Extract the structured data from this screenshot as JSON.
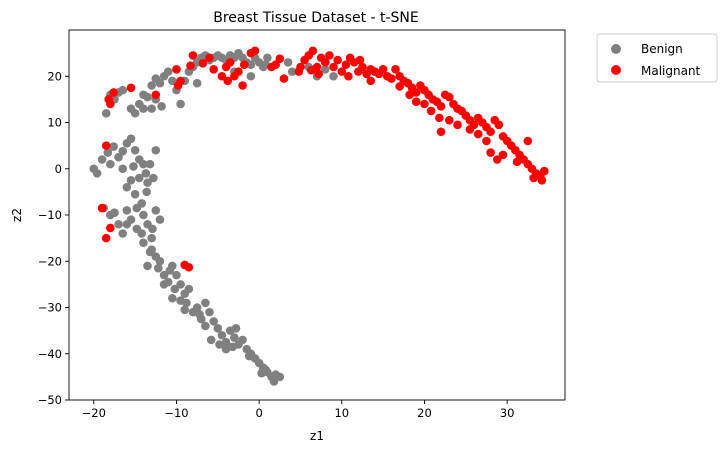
{
  "chart_data": {
    "type": "scatter",
    "title": "Breast Tissue Dataset - t-SNE",
    "xlabel": "z1",
    "ylabel": "z2",
    "xlim": [
      -23,
      37
    ],
    "ylim": [
      -50,
      30
    ],
    "xticks": [
      -20,
      -10,
      0,
      10,
      20,
      30
    ],
    "yticks": [
      -50,
      -40,
      -30,
      -20,
      -10,
      0,
      10,
      20
    ],
    "grid": false,
    "legend_position": "outside-upper-right",
    "series": [
      {
        "name": "Benign",
        "color": "#808080",
        "points": [
          [
            -20,
            0
          ],
          [
            -19.6,
            -1
          ],
          [
            -19,
            2
          ],
          [
            -18.3,
            3.5
          ],
          [
            -18,
            1
          ],
          [
            -17.6,
            4.8
          ],
          [
            -17,
            2.5
          ],
          [
            -16.5,
            3.8
          ],
          [
            -16,
            5.5
          ],
          [
            -15.5,
            6.5
          ],
          [
            -15,
            4
          ],
          [
            -14.5,
            2
          ],
          [
            -15.2,
            0.5
          ],
          [
            -14,
            1
          ],
          [
            -14.5,
            -2
          ],
          [
            -16,
            -4
          ],
          [
            -15,
            -5.5
          ],
          [
            -13.6,
            -5
          ],
          [
            -14.2,
            -7.5
          ],
          [
            -13.5,
            -3
          ],
          [
            -12.8,
            -2
          ],
          [
            -13.2,
            1
          ],
          [
            -12.5,
            4
          ],
          [
            -18.8,
            -8.5
          ],
          [
            -18,
            -10
          ],
          [
            -17,
            -12
          ],
          [
            -16.5,
            -14
          ],
          [
            -16,
            -9
          ],
          [
            -15.5,
            -11
          ],
          [
            -14.8,
            -13
          ],
          [
            -14,
            -10
          ],
          [
            -13.5,
            -12
          ],
          [
            -12.5,
            -9
          ],
          [
            -12,
            -11
          ],
          [
            -13,
            -15
          ],
          [
            -14,
            -16
          ],
          [
            -13,
            -17.5
          ],
          [
            -12.5,
            -19
          ],
          [
            -13.5,
            -21
          ],
          [
            -12.2,
            -21.5
          ],
          [
            -11.5,
            -23
          ],
          [
            -10.8,
            -22
          ],
          [
            -11,
            -24.5
          ],
          [
            -10.2,
            -26
          ],
          [
            -10,
            -23
          ],
          [
            -9.5,
            -25
          ],
          [
            -9,
            -27
          ],
          [
            -9.5,
            -28.5
          ],
          [
            -8.5,
            -26
          ],
          [
            -8.8,
            -29
          ],
          [
            -7.5,
            -30
          ],
          [
            -8,
            -31
          ],
          [
            -7,
            -32.5
          ],
          [
            -6,
            -31
          ],
          [
            -6.5,
            -29
          ],
          [
            -5.5,
            -33
          ],
          [
            -5,
            -34.5
          ],
          [
            -4.5,
            -36
          ],
          [
            -4,
            -37.5
          ],
          [
            -3.5,
            -35
          ],
          [
            -3,
            -36.5
          ],
          [
            -2.5,
            -38
          ],
          [
            -2,
            -37
          ],
          [
            -1.5,
            -39
          ],
          [
            -1,
            -40
          ],
          [
            -0.5,
            -41
          ],
          [
            0,
            -42
          ],
          [
            0.5,
            -43
          ],
          [
            1,
            -44
          ],
          [
            1.5,
            -45
          ],
          [
            2,
            -44.5
          ],
          [
            2.5,
            -45
          ],
          [
            1.8,
            -46
          ],
          [
            0.8,
            -43.5
          ],
          [
            -4,
            -39
          ],
          [
            -4.8,
            -38
          ],
          [
            -3.2,
            -38.5
          ],
          [
            -2.8,
            -34.5
          ],
          [
            -6.5,
            -34
          ],
          [
            -7.2,
            -31.5
          ],
          [
            -9,
            -30.5
          ],
          [
            -10.5,
            -28
          ],
          [
            -11.5,
            -25
          ],
          [
            -12,
            -20
          ],
          [
            -13.2,
            -18
          ],
          [
            -14.2,
            -14
          ],
          [
            -16,
            -12
          ],
          [
            -17.5,
            -9.5
          ],
          [
            -15.5,
            -2.5
          ],
          [
            -16.5,
            0
          ],
          [
            -13.7,
            -1
          ],
          [
            -14.8,
            -8.5
          ],
          [
            -12.9,
            -13
          ],
          [
            -10.5,
            -21
          ],
          [
            -5.8,
            -37
          ],
          [
            -1.2,
            -40.5
          ],
          [
            0.3,
            -44.2
          ],
          [
            -18.5,
            12
          ],
          [
            -17.5,
            15
          ],
          [
            -18,
            16
          ],
          [
            -17,
            16.5
          ],
          [
            -16.5,
            17
          ],
          [
            -15.5,
            13
          ],
          [
            -15,
            12
          ],
          [
            -14.5,
            14
          ],
          [
            -14,
            16
          ],
          [
            -13.5,
            15.5
          ],
          [
            -13,
            13
          ],
          [
            -12.5,
            15
          ],
          [
            -12,
            18.5
          ],
          [
            -11.5,
            20
          ],
          [
            -11,
            21
          ],
          [
            -10.5,
            19
          ],
          [
            -10,
            17
          ],
          [
            -9.5,
            14
          ],
          [
            -13,
            18
          ],
          [
            -12.5,
            19.5
          ],
          [
            -11.8,
            13.5
          ],
          [
            -14,
            13
          ],
          [
            -8.5,
            21
          ],
          [
            -8,
            22
          ],
          [
            -7.5,
            23
          ],
          [
            -7,
            24
          ],
          [
            -6.5,
            24.5
          ],
          [
            -6,
            23.5
          ],
          [
            -5.5,
            24
          ],
          [
            -5,
            24.5
          ],
          [
            -4.5,
            24
          ],
          [
            -4,
            23.5
          ],
          [
            -3.5,
            24.5
          ],
          [
            -3,
            24
          ],
          [
            -2.5,
            25
          ],
          [
            -2,
            24
          ],
          [
            -1.5,
            23
          ],
          [
            -1,
            22.5
          ],
          [
            -0.5,
            24
          ],
          [
            0,
            23
          ],
          [
            0.5,
            22
          ],
          [
            1,
            24
          ],
          [
            0.8,
            22.5
          ],
          [
            -7.5,
            18.5
          ],
          [
            -9,
            19
          ],
          [
            -1,
            20
          ],
          [
            -3,
            21
          ],
          [
            4,
            21
          ],
          [
            3.5,
            23
          ],
          [
            6,
            22
          ],
          [
            7,
            20
          ],
          [
            9,
            20
          ],
          [
            8,
            21.5
          ]
        ]
      },
      {
        "name": "Malignant",
        "color": "#ff0000",
        "points": [
          [
            -19,
            -8.5
          ],
          [
            -18.5,
            -15
          ],
          [
            -18,
            -12.8
          ],
          [
            -18.5,
            5
          ],
          [
            -9,
            -20.8
          ],
          [
            -8.5,
            -21.3
          ],
          [
            -18,
            14
          ],
          [
            -18.2,
            15
          ],
          [
            -17.6,
            16.5
          ],
          [
            -15.5,
            17.5
          ],
          [
            -12.5,
            16
          ],
          [
            -10,
            21.5
          ],
          [
            -9.5,
            19
          ],
          [
            -8,
            24.5
          ],
          [
            -6,
            24
          ],
          [
            -4.5,
            20
          ],
          [
            -4,
            22
          ],
          [
            -3.5,
            23
          ],
          [
            -3,
            20
          ],
          [
            -2.5,
            21
          ],
          [
            -2,
            18
          ],
          [
            -1.8,
            22.5
          ],
          [
            -1,
            25
          ],
          [
            -0.5,
            25.5
          ],
          [
            2,
            22.5
          ],
          [
            5,
            22
          ],
          [
            5.5,
            23.5
          ],
          [
            6,
            24.5
          ],
          [
            6.5,
            25.5
          ],
          [
            7,
            22
          ],
          [
            7.5,
            24
          ],
          [
            8,
            23
          ],
          [
            8.5,
            24.5
          ],
          [
            9,
            22
          ],
          [
            9.5,
            23.5
          ],
          [
            10,
            21
          ],
          [
            10.5,
            22.5
          ],
          [
            11,
            24
          ],
          [
            11.5,
            23
          ],
          [
            12,
            21
          ],
          [
            12.5,
            22
          ],
          [
            13,
            20.5
          ],
          [
            13.5,
            21.5
          ],
          [
            14,
            21
          ],
          [
            14.5,
            20.5
          ],
          [
            15,
            21.5
          ],
          [
            15.5,
            20
          ],
          [
            16,
            19.5
          ],
          [
            16.5,
            21.5
          ],
          [
            17,
            20
          ],
          [
            17.5,
            19
          ],
          [
            18,
            18.5
          ],
          [
            18.5,
            17.5
          ],
          [
            19,
            16.5
          ],
          [
            19.5,
            18
          ],
          [
            20,
            17
          ],
          [
            20.5,
            16
          ],
          [
            21,
            15
          ],
          [
            21.5,
            14.5
          ],
          [
            22,
            13.5
          ],
          [
            22.5,
            16
          ],
          [
            23,
            15.5
          ],
          [
            23.5,
            14
          ],
          [
            24,
            13
          ],
          [
            24.5,
            12.5
          ],
          [
            25,
            11.5
          ],
          [
            25.5,
            10.5
          ],
          [
            26,
            9.5
          ],
          [
            26.5,
            11
          ],
          [
            27,
            10
          ],
          [
            27.5,
            9
          ],
          [
            28,
            8
          ],
          [
            28.5,
            10.5
          ],
          [
            29,
            9.5
          ],
          [
            29.5,
            7
          ],
          [
            30,
            6
          ],
          [
            30.5,
            5
          ],
          [
            31,
            4
          ],
          [
            31.5,
            3
          ],
          [
            32,
            2
          ],
          [
            32.5,
            1
          ],
          [
            33,
            0
          ],
          [
            33.5,
            -1
          ],
          [
            34,
            -1.5
          ],
          [
            34.5,
            -0.5
          ],
          [
            34.2,
            -2.5
          ],
          [
            33.2,
            -2
          ],
          [
            32.5,
            6
          ],
          [
            31.2,
            1.5
          ],
          [
            29.5,
            3
          ],
          [
            28.8,
            2
          ],
          [
            28,
            3.5
          ],
          [
            27.5,
            6
          ],
          [
            26.5,
            7.5
          ],
          [
            25.5,
            8.5
          ],
          [
            24,
            9.5
          ],
          [
            23,
            10.5
          ],
          [
            22,
            8
          ],
          [
            21.8,
            11
          ],
          [
            20.8,
            12.5
          ],
          [
            20,
            14
          ],
          [
            19,
            14.5
          ],
          [
            18.2,
            16
          ],
          [
            17,
            17.8
          ],
          [
            13.5,
            19
          ],
          [
            12.2,
            23.5
          ],
          [
            10.8,
            20
          ],
          [
            7.2,
            20.5
          ],
          [
            6.3,
            21.3
          ],
          [
            4.8,
            21
          ],
          [
            3,
            19.5
          ],
          [
            -5.5,
            21.5
          ],
          [
            -3.8,
            19
          ],
          [
            -6.8,
            22.8
          ],
          [
            -9.8,
            18
          ],
          [
            -8.3,
            22.3
          ],
          [
            2.5,
            23.8
          ],
          [
            1.5,
            22
          ]
        ]
      }
    ]
  }
}
